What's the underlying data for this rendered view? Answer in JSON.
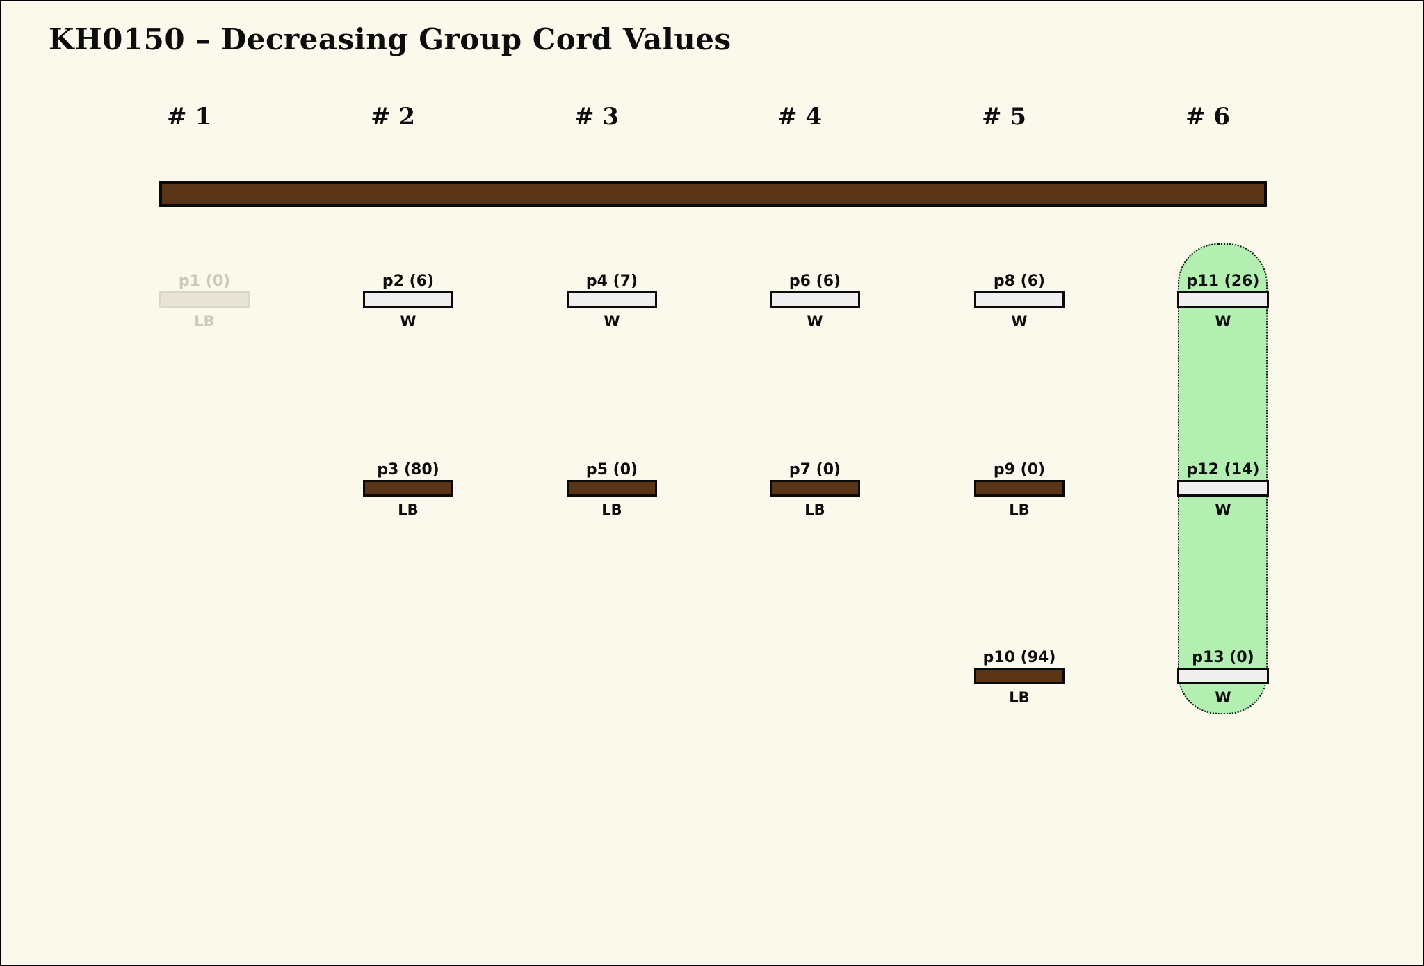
{
  "title": "KH0150 – Decreasing Group Cord Values",
  "columns": [
    {
      "label": "# 1"
    },
    {
      "label": "# 2"
    },
    {
      "label": "# 3"
    },
    {
      "label": "# 4"
    },
    {
      "label": "# 5"
    },
    {
      "label": "# 6"
    }
  ],
  "entries": [
    {
      "id": "p1",
      "name": "p1 (0)",
      "type": "LB",
      "col": 1,
      "row": 1,
      "variant": "faded"
    },
    {
      "id": "p2",
      "name": "p2 (6)",
      "type": "W",
      "col": 2,
      "row": 1,
      "variant": "white"
    },
    {
      "id": "p3",
      "name": "p3 (80)",
      "type": "LB",
      "col": 2,
      "row": 2,
      "variant": "brown"
    },
    {
      "id": "p4",
      "name": "p4 (7)",
      "type": "W",
      "col": 3,
      "row": 1,
      "variant": "white"
    },
    {
      "id": "p5",
      "name": "p5 (0)",
      "type": "LB",
      "col": 3,
      "row": 2,
      "variant": "brown"
    },
    {
      "id": "p6",
      "name": "p6 (6)",
      "type": "W",
      "col": 4,
      "row": 1,
      "variant": "white"
    },
    {
      "id": "p7",
      "name": "p7 (0)",
      "type": "LB",
      "col": 4,
      "row": 2,
      "variant": "brown"
    },
    {
      "id": "p8",
      "name": "p8 (6)",
      "type": "W",
      "col": 5,
      "row": 1,
      "variant": "white"
    },
    {
      "id": "p9",
      "name": "p9 (0)",
      "type": "LB",
      "col": 5,
      "row": 2,
      "variant": "brown"
    },
    {
      "id": "p10",
      "name": "p10 (94)",
      "type": "LB",
      "col": 5,
      "row": 3,
      "variant": "brown"
    },
    {
      "id": "p11",
      "name": "p11 (26)",
      "type": "W",
      "col": 6,
      "row": 1,
      "variant": "white"
    },
    {
      "id": "p12",
      "name": "p12 (14)",
      "type": "W",
      "col": 6,
      "row": 2,
      "variant": "white"
    },
    {
      "id": "p13",
      "name": "p13 (0)",
      "type": "W",
      "col": 6,
      "row": 3,
      "variant": "white"
    }
  ],
  "highlight_group": {
    "column": 6,
    "members": [
      "p11",
      "p12",
      "p13"
    ]
  },
  "colors": {
    "background": "#fbf9ec",
    "brown": "#5a3417",
    "bar_fill": "#efefef",
    "green": "#b4efb2",
    "faded_text": "#ccc9ba",
    "faded_fill": "#e7e4d6",
    "faded_border": "#dbd8c9"
  }
}
